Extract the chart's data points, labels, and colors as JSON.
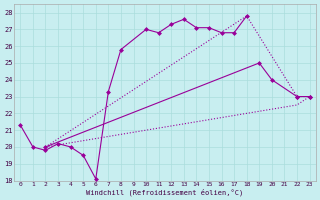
{
  "xlabel": "Windchill (Refroidissement éolien,°C)",
  "background_color": "#c8eef0",
  "grid_color": "#aadddd",
  "line_color": "#990099",
  "ylim": [
    18,
    28.5
  ],
  "xlim": [
    -0.5,
    23.5
  ],
  "yticks": [
    18,
    19,
    20,
    21,
    22,
    23,
    24,
    25,
    26,
    27,
    28
  ],
  "xticks": [
    0,
    1,
    2,
    3,
    4,
    5,
    6,
    7,
    8,
    9,
    10,
    11,
    12,
    13,
    14,
    15,
    16,
    17,
    18,
    19,
    20,
    21,
    22,
    23
  ],
  "line1_x": [
    0,
    1,
    2,
    3,
    4,
    5,
    6,
    7,
    8,
    10,
    11,
    12,
    13,
    14,
    15,
    16,
    17,
    18
  ],
  "line1_y": [
    21.3,
    20.0,
    19.8,
    20.2,
    20.0,
    19.5,
    18.1,
    23.3,
    25.8,
    27.0,
    26.8,
    27.3,
    27.6,
    27.1,
    27.1,
    26.8,
    26.8,
    27.8
  ],
  "line2_x": [
    2,
    22,
    23
  ],
  "line2_y": [
    20.0,
    22.5,
    23.0
  ],
  "line3_x": [
    2,
    19,
    20,
    22,
    23
  ],
  "line3_y": [
    20.0,
    25.0,
    24.0,
    23.0,
    23.0
  ],
  "line4_x": [
    2,
    18,
    22,
    23
  ],
  "line4_y": [
    20.0,
    27.8,
    23.0,
    23.0
  ]
}
